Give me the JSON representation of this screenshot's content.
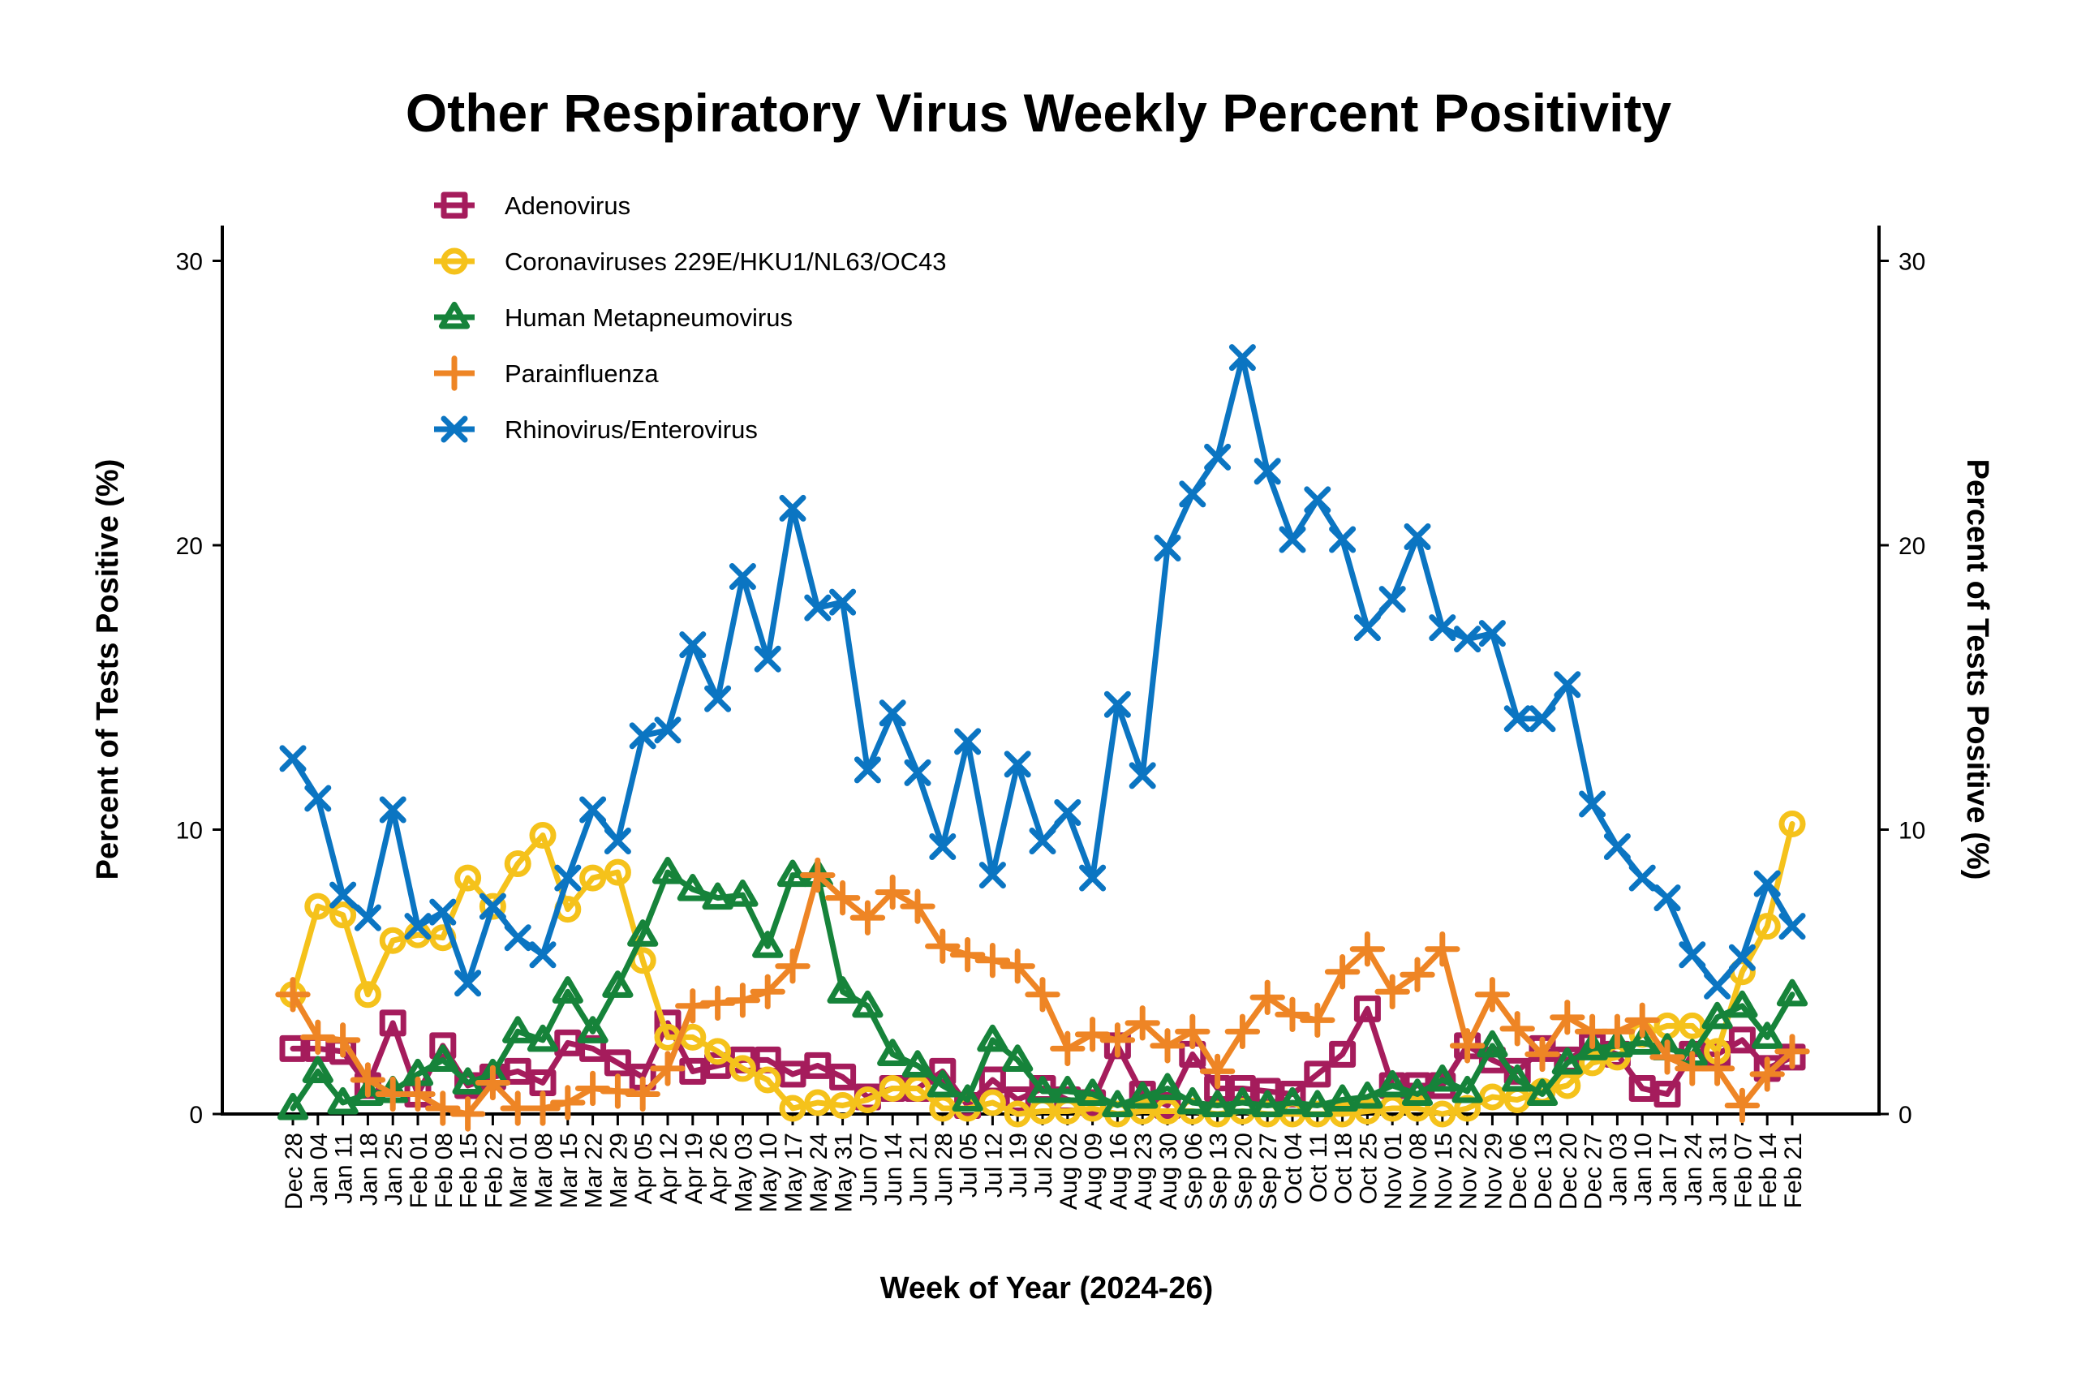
{
  "chart_data": {
    "type": "line",
    "title": "Other Respiratory Virus Weekly Percent Positivity",
    "xlabel": "Week of Year (2024-26)",
    "ylabel": "Percent of Tests Positive (%)",
    "ylabel_right": "Percent of Tests Positive (%)",
    "ylim": [
      0,
      32
    ],
    "yticks": [
      0,
      10,
      20,
      30
    ],
    "ytick_labels": [
      "0",
      "10",
      "20",
      "30"
    ],
    "grid": false,
    "legend_position": "top-left",
    "x": [
      "Dec 28",
      "Jan 04",
      "Jan 11",
      "Jan 18",
      "Jan 25",
      "Feb 01",
      "Feb 08",
      "Feb 15",
      "Feb 22",
      "Mar 01",
      "Mar 08",
      "Mar 15",
      "Mar 22",
      "Mar 29",
      "Apr 05",
      "Apr 12",
      "Apr 19",
      "Apr 26",
      "May 03",
      "May 10",
      "May 17",
      "May 24",
      "May 31",
      "Jun 07",
      "Jun 14",
      "Jun 21",
      "Jun 28",
      "Jul 05",
      "Jul 12",
      "Jul 19",
      "Jul 26",
      "Aug 02",
      "Aug 09",
      "Aug 16",
      "Aug 23",
      "Aug 30",
      "Sep 06",
      "Sep 13",
      "Sep 20",
      "Sep 27",
      "Oct 04",
      "Oct 11",
      "Oct 18",
      "Oct 25",
      "Nov 01",
      "Nov 08",
      "Nov 15",
      "Nov 22",
      "Nov 29",
      "Dec 06",
      "Dec 13",
      "Dec 20",
      "Dec 27",
      "Jan 03",
      "Jan 10",
      "Jan 17",
      "Jan 24",
      "Jan 31",
      "Feb 07",
      "Feb 14",
      "Feb 21"
    ],
    "series": [
      {
        "name": "Adenovirus",
        "color": "#A51C5C",
        "marker": "square",
        "values": [
          2.3,
          2.3,
          2.2,
          1.0,
          3.2,
          0.7,
          2.4,
          1.0,
          1.3,
          1.5,
          1.1,
          2.5,
          2.3,
          1.8,
          1.3,
          3.2,
          1.5,
          1.7,
          1.9,
          1.9,
          1.4,
          1.7,
          1.3,
          0.6,
          0.9,
          0.9,
          1.5,
          0.3,
          1.2,
          0.5,
          0.9,
          0.5,
          0.4,
          2.4,
          0.7,
          0.3,
          2.1,
          0.9,
          0.9,
          0.8,
          0.7,
          1.4,
          2.1,
          3.7,
          1.0,
          1.0,
          1.0,
          2.4,
          1.9,
          1.5,
          2.3,
          1.9,
          2.4,
          2.1,
          0.9,
          0.7,
          2.1,
          2.1,
          2.6,
          1.6,
          2.0
        ]
      },
      {
        "name": "Coronaviruses 229E/HKU1/NL63/OC43",
        "color": "#F5C21B",
        "marker": "circle",
        "values": [
          4.2,
          7.3,
          7.0,
          4.2,
          6.1,
          6.3,
          6.2,
          8.3,
          7.3,
          8.8,
          9.8,
          7.2,
          8.3,
          8.5,
          5.4,
          2.7,
          2.7,
          2.2,
          1.6,
          1.2,
          0.2,
          0.4,
          0.3,
          0.5,
          0.9,
          0.9,
          0.2,
          0.2,
          0.4,
          0.0,
          0.1,
          0.1,
          0.2,
          0.0,
          0.1,
          0.1,
          0.1,
          0.0,
          0.1,
          0.0,
          0.0,
          0.0,
          0.0,
          0.1,
          0.2,
          0.2,
          0.0,
          0.2,
          0.6,
          0.5,
          0.8,
          1.0,
          1.8,
          2.0,
          2.8,
          3.1,
          3.1,
          2.2,
          5.0,
          6.6,
          10.2
        ]
      },
      {
        "name": "Human Metapneumovirus",
        "color": "#16833A",
        "marker": "triangle",
        "values": [
          0.2,
          1.5,
          0.4,
          0.7,
          0.8,
          1.4,
          1.9,
          1.1,
          1.4,
          2.9,
          2.6,
          4.3,
          2.9,
          4.5,
          6.3,
          8.5,
          7.9,
          7.6,
          7.7,
          5.9,
          8.4,
          8.4,
          4.3,
          3.8,
          2.1,
          1.7,
          1.0,
          0.5,
          2.6,
          1.9,
          0.8,
          0.8,
          0.7,
          0.3,
          0.6,
          0.9,
          0.4,
          0.3,
          0.4,
          0.3,
          0.4,
          0.3,
          0.5,
          0.6,
          1.0,
          0.7,
          1.2,
          0.8,
          2.4,
          1.2,
          0.7,
          1.8,
          2.3,
          2.4,
          2.5,
          2.3,
          2.1,
          3.4,
          3.8,
          2.7,
          4.2
        ]
      },
      {
        "name": "Parainfluenza",
        "color": "#EE8525",
        "marker": "plus",
        "values": [
          4.2,
          2.7,
          2.6,
          1.2,
          0.7,
          0.7,
          0.2,
          0.0,
          1.1,
          0.2,
          0.2,
          0.4,
          0.9,
          0.8,
          0.7,
          1.6,
          3.8,
          3.9,
          4.0,
          4.3,
          5.2,
          8.4,
          7.6,
          6.9,
          7.8,
          7.3,
          5.9,
          5.6,
          5.4,
          5.2,
          4.2,
          2.3,
          2.8,
          2.6,
          3.2,
          2.4,
          2.9,
          1.5,
          2.9,
          4.1,
          3.5,
          3.3,
          5.0,
          5.8,
          4.3,
          4.9,
          5.8,
          2.4,
          4.2,
          3.0,
          2.1,
          3.4,
          2.9,
          2.9,
          3.3,
          2.0,
          1.6,
          1.6,
          0.3,
          1.4,
          2.2
        ]
      },
      {
        "name": "Rhinovirus/Enterovirus",
        "color": "#0B75C2",
        "marker": "x",
        "values": [
          12.5,
          11.1,
          7.7,
          6.9,
          10.7,
          6.6,
          7.1,
          4.6,
          7.3,
          6.2,
          5.6,
          8.3,
          10.7,
          9.6,
          13.3,
          13.5,
          16.5,
          14.6,
          18.9,
          16.0,
          21.3,
          17.8,
          18.0,
          12.1,
          14.1,
          12.0,
          9.4,
          13.1,
          8.4,
          12.3,
          9.6,
          10.6,
          8.3,
          14.4,
          11.9,
          19.9,
          21.8,
          23.1,
          26.6,
          22.6,
          20.2,
          21.6,
          20.2,
          17.1,
          18.1,
          20.3,
          17.1,
          16.7,
          16.9,
          13.9,
          13.9,
          15.1,
          10.9,
          9.4,
          8.3,
          7.6,
          5.6,
          4.5,
          5.5,
          8.1,
          6.6
        ]
      }
    ]
  }
}
